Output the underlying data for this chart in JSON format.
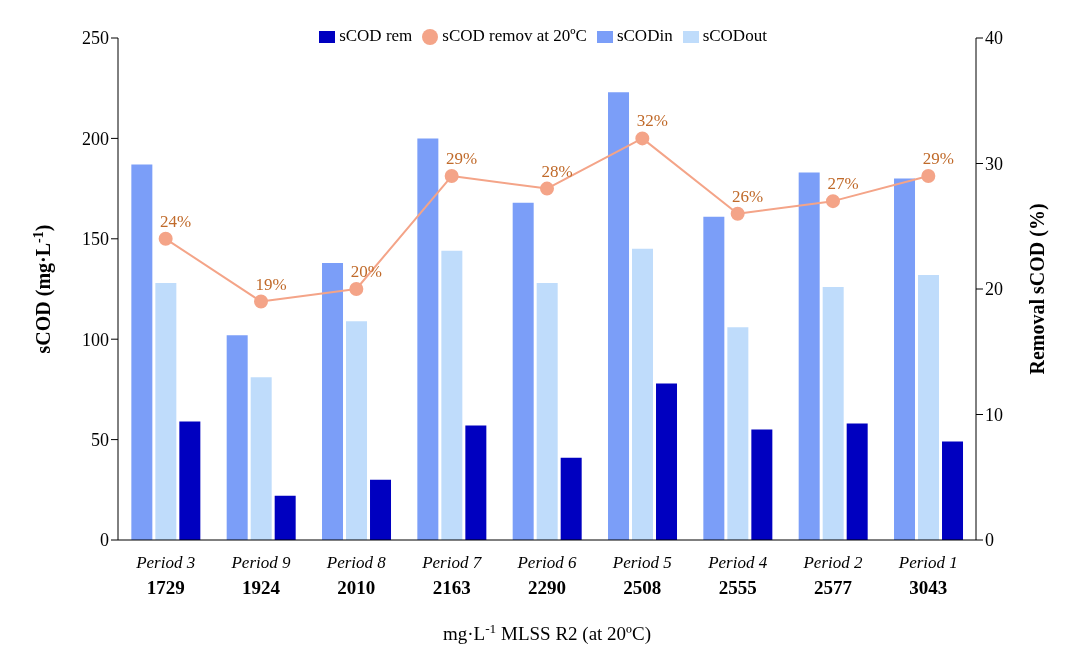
{
  "chart_data": {
    "type": "bar",
    "categories": [
      "Period 3\n1729",
      "Period 9\n1924",
      "Period 8\n2010",
      "Period 7\n2163",
      "Period 6\n2290",
      "Period 5\n2508",
      "Period 4\n2555",
      "Period 2\n2577",
      "Period 1\n3043"
    ],
    "xlabel": "mg·L$^{-1}$ MLSS R2 (at 20ºC)",
    "ylabel": "sCOD (mg·L$^{-1}$)",
    "y2label": "Removal sCOD (%)",
    "ylim": [
      0,
      250
    ],
    "yticks": [
      0,
      50,
      100,
      150,
      200,
      250
    ],
    "y2lim": [
      0,
      40
    ],
    "y2ticks": [
      0,
      10,
      20,
      30,
      40
    ],
    "legend": "top",
    "grid": false,
    "series": [
      {
        "name": "sCODin",
        "color": "#7b9ef8",
        "values": [
          187,
          102,
          138,
          200,
          168,
          223,
          161,
          183,
          180
        ]
      },
      {
        "name": "sCODout",
        "color": "#bfdcfb",
        "values": [
          128,
          81,
          109,
          144,
          128,
          145,
          106,
          126,
          132
        ]
      },
      {
        "name": "sCOD rem",
        "color": "#0000c0",
        "values": [
          59,
          22,
          30,
          57,
          41,
          78,
          55,
          58,
          49
        ]
      },
      {
        "name": "sCOD remov at 20ºC",
        "type": "line",
        "axis": "y2",
        "color": "#f4a488",
        "marker": "circle",
        "values": [
          24,
          19,
          20,
          29,
          28,
          32,
          26,
          27,
          29
        ],
        "value_labels": [
          "24%",
          "19%",
          "20%",
          "29%",
          "28%",
          "32%",
          "26%",
          "27%",
          "29%"
        ]
      }
    ]
  }
}
